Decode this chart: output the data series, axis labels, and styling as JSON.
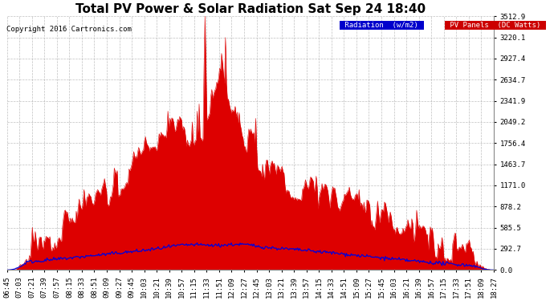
{
  "title": "Total PV Power & Solar Radiation Sat Sep 24 18:40",
  "copyright": "Copyright 2016 Cartronics.com",
  "background_color": "#ffffff",
  "plot_bg_color": "#ffffff",
  "grid_color": "#b0b0b0",
  "ylabel_right_values": [
    0.0,
    292.7,
    585.5,
    878.2,
    1171.0,
    1463.7,
    1756.4,
    2049.2,
    2341.9,
    2634.7,
    2927.4,
    3220.1,
    3512.9
  ],
  "pv_color": "#dd0000",
  "radiation_color": "#0000dd",
  "legend_radiation_bg": "#0000cc",
  "legend_pv_bg": "#cc0000",
  "legend_radiation_text": "Radiation  (w/m2)",
  "legend_pv_text": "PV Panels  (DC Watts)",
  "ymax": 3512.9,
  "title_fontsize": 11,
  "tick_fontsize": 6.5,
  "copyright_fontsize": 6.5,
  "time_labels": [
    "06:45",
    "07:03",
    "07:21",
    "07:39",
    "07:57",
    "08:15",
    "08:33",
    "08:51",
    "09:09",
    "09:27",
    "09:45",
    "10:03",
    "10:21",
    "10:39",
    "10:57",
    "11:15",
    "11:33",
    "11:51",
    "12:09",
    "12:27",
    "12:45",
    "13:03",
    "13:21",
    "13:39",
    "13:57",
    "14:15",
    "14:33",
    "14:51",
    "15:09",
    "15:27",
    "15:45",
    "16:03",
    "16:21",
    "16:39",
    "16:57",
    "17:15",
    "17:33",
    "17:51",
    "18:09",
    "18:27"
  ]
}
